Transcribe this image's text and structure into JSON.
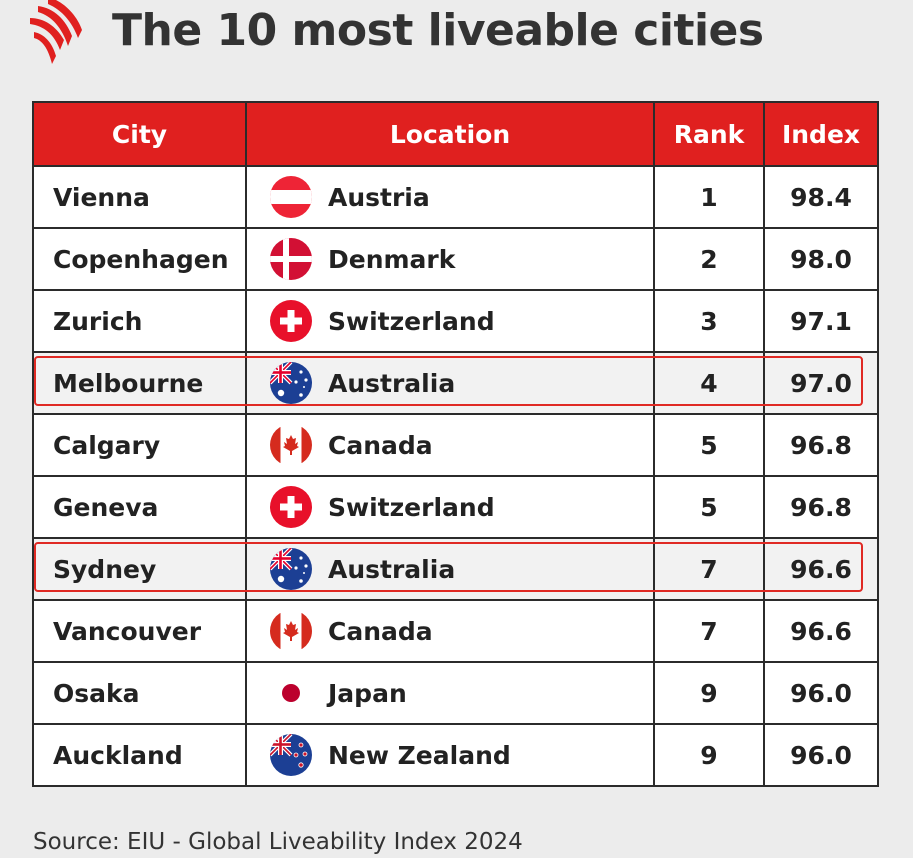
{
  "title": "The 10 most liveable cities",
  "source": "Source: EIU - Global Liveability Index 2024",
  "colors": {
    "header_bg": "#e0201f",
    "highlight": "#e02a24"
  },
  "logo": "sbs-logo",
  "chart_data": {
    "type": "table",
    "title": "The 10 most liveable cities",
    "columns": [
      "City",
      "Location",
      "Rank",
      "Index"
    ],
    "rows": [
      {
        "city": "Vienna",
        "location": "Austria",
        "flag": "austria-flag-icon",
        "rank": "1",
        "index": "98.4"
      },
      {
        "city": "Copenhagen",
        "location": "Denmark",
        "flag": "denmark-flag-icon",
        "rank": "2",
        "index": "98.0"
      },
      {
        "city": "Zurich",
        "location": "Switzerland",
        "flag": "switzerland-flag-icon",
        "rank": "3",
        "index": "97.1"
      },
      {
        "city": "Melbourne",
        "location": "Australia",
        "flag": "australia-flag-icon",
        "rank": "4",
        "index": "97.0",
        "highlighted": true
      },
      {
        "city": "Calgary",
        "location": "Canada",
        "flag": "canada-flag-icon",
        "rank": "5",
        "index": "96.8"
      },
      {
        "city": "Geneva",
        "location": "Switzerland",
        "flag": "switzerland-flag-icon",
        "rank": "5",
        "index": "96.8"
      },
      {
        "city": "Sydney",
        "location": "Australia",
        "flag": "australia-flag-icon",
        "rank": "7",
        "index": "96.6",
        "highlighted": true
      },
      {
        "city": "Vancouver",
        "location": "Canada",
        "flag": "canada-flag-icon",
        "rank": "7",
        "index": "96.6"
      },
      {
        "city": "Osaka",
        "location": "Japan",
        "flag": "japan-flag-icon",
        "rank": "9",
        "index": "96.0"
      },
      {
        "city": "Auckland",
        "location": "New Zealand",
        "flag": "new-zealand-flag-icon",
        "rank": "9",
        "index": "96.0"
      }
    ]
  }
}
